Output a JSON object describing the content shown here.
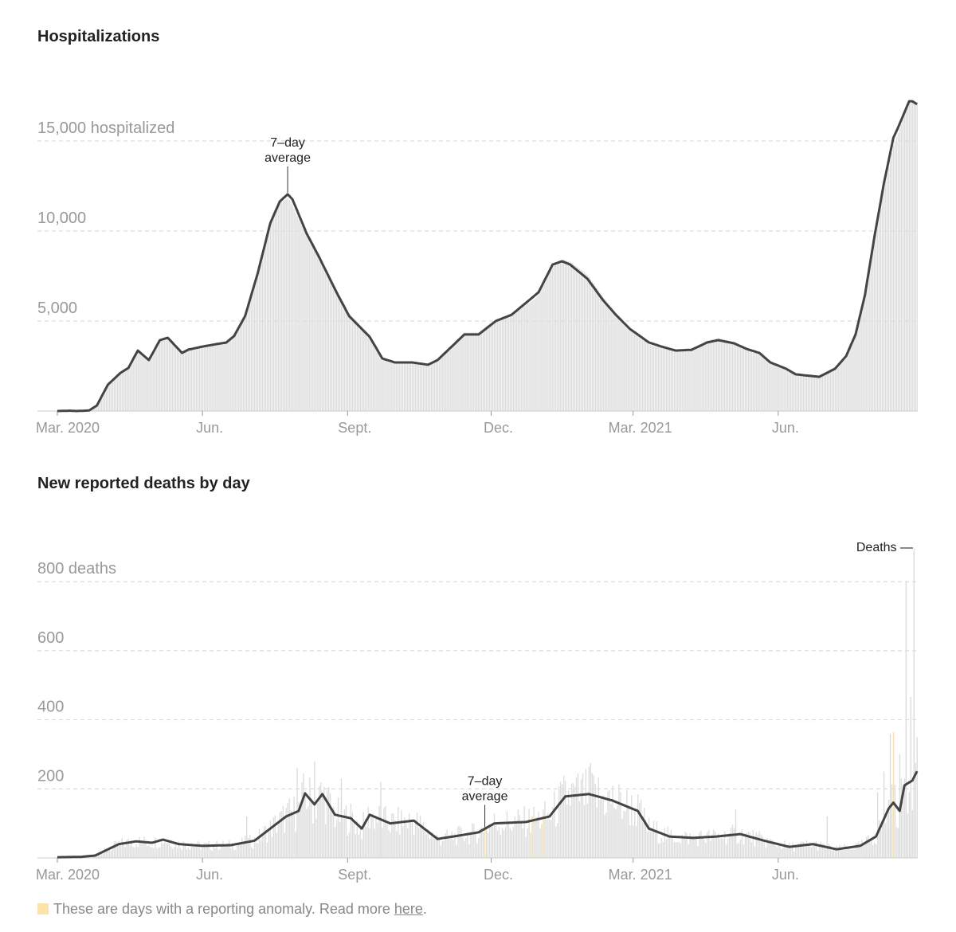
{
  "chart_data": [
    {
      "type": "area",
      "title": "Hospitalizations",
      "x_unit": "days since 2020-03-01",
      "x_ticks": [
        {
          "day": 0,
          "label": "Mar. 2020"
        },
        {
          "day": 92,
          "label": "Jun."
        },
        {
          "day": 184,
          "label": "Sept."
        },
        {
          "day": 275,
          "label": "Dec."
        },
        {
          "day": 365,
          "label": "Mar. 2021"
        },
        {
          "day": 457,
          "label": "Jun."
        }
      ],
      "y_ticks": [
        {
          "value": 5000,
          "label": "5,000"
        },
        {
          "value": 10000,
          "label": "10,000"
        },
        {
          "value": 15000,
          "label": "15,000 hospitalized"
        }
      ],
      "ylim": [
        0,
        17500
      ],
      "grid": true,
      "annotation": {
        "line1": "7–day",
        "line2": "average",
        "day": 146
      },
      "series": [
        {
          "name": "7-day average",
          "x": [
            0,
            8,
            12,
            20,
            25,
            32,
            40,
            45,
            51,
            58,
            65,
            70,
            79,
            83,
            92,
            101,
            107,
            112,
            119,
            127,
            135,
            141,
            146,
            149,
            158,
            166,
            177,
            185,
            198,
            206,
            214,
            225,
            235,
            241,
            258,
            267,
            278,
            288,
            299,
            305,
            314,
            320,
            325,
            336,
            346,
            354,
            363,
            375,
            383,
            392,
            402,
            412,
            419,
            429,
            437,
            445,
            452,
            462,
            468,
            483,
            493,
            500,
            506,
            512,
            518,
            524,
            530,
            533,
            540,
            542,
            545
          ],
          "y": [
            0,
            20,
            0,
            30,
            300,
            1460,
            2120,
            2390,
            3360,
            2830,
            3940,
            4070,
            3230,
            3410,
            3580,
            3720,
            3800,
            4160,
            5270,
            7650,
            10440,
            11640,
            12040,
            11770,
            9870,
            8540,
            6590,
            5270,
            4120,
            2920,
            2700,
            2700,
            2570,
            2830,
            4250,
            4250,
            5000,
            5350,
            6150,
            6590,
            8140,
            8320,
            8140,
            7350,
            6150,
            5350,
            4560,
            3810,
            3580,
            3360,
            3400,
            3810,
            3940,
            3760,
            3450,
            3230,
            2700,
            2350,
            2040,
            1900,
            2350,
            3050,
            4250,
            6460,
            9690,
            12650,
            15180,
            15750,
            17210,
            17210,
            17040
          ]
        }
      ]
    },
    {
      "type": "bar",
      "title": "New reported deaths by day",
      "x_unit": "days since 2020-03-01",
      "x_ticks": [
        {
          "day": 0,
          "label": "Mar. 2020"
        },
        {
          "day": 92,
          "label": "Jun."
        },
        {
          "day": 184,
          "label": "Sept."
        },
        {
          "day": 275,
          "label": "Dec."
        },
        {
          "day": 365,
          "label": "Mar. 2021"
        },
        {
          "day": 457,
          "label": "Jun."
        }
      ],
      "y_ticks": [
        {
          "value": 200,
          "label": "200"
        },
        {
          "value": 400,
          "label": "400"
        },
        {
          "value": 600,
          "label": "600"
        },
        {
          "value": 800,
          "label": "800 deaths"
        }
      ],
      "ylim": [
        0,
        900
      ],
      "grid": true,
      "annotation": {
        "line1": "7–day",
        "line2": "average",
        "day": 271
      },
      "bar_label": "Deaths —",
      "series": [
        {
          "name": "7-day average",
          "x": [
            0,
            15,
            24,
            39,
            50,
            60,
            67,
            77,
            92,
            110,
            125,
            135,
            145,
            153,
            157,
            163,
            168,
            176,
            186,
            193,
            198,
            211,
            226,
            241,
            251,
            267,
            277,
            297,
            312,
            322,
            337,
            352,
            368,
            375,
            388,
            403,
            418,
            433,
            448,
            464,
            479,
            494,
            509,
            519,
            527,
            530,
            534,
            537,
            542,
            545
          ],
          "y": [
            2,
            3,
            7,
            40,
            48,
            44,
            53,
            40,
            35,
            37,
            50,
            85,
            120,
            136,
            187,
            155,
            185,
            125,
            115,
            85,
            125,
            100,
            108,
            55,
            62,
            74,
            100,
            104,
            120,
            178,
            185,
            166,
            136,
            85,
            62,
            58,
            62,
            69,
            50,
            32,
            40,
            25,
            35,
            62,
            143,
            160,
            136,
            210,
            224,
            251
          ]
        }
      ],
      "spikes": [
        {
          "day": 120,
          "value": 120
        },
        {
          "day": 152,
          "value": 260
        },
        {
          "day": 163,
          "value": 280
        },
        {
          "day": 180,
          "value": 230
        },
        {
          "day": 205,
          "value": 220
        },
        {
          "day": 338,
          "value": 275
        },
        {
          "day": 430,
          "value": 140
        },
        {
          "day": 488,
          "value": 120
        },
        {
          "day": 520,
          "value": 190
        },
        {
          "day": 524,
          "value": 250
        },
        {
          "day": 528,
          "value": 360
        },
        {
          "day": 534,
          "value": 300
        },
        {
          "day": 538,
          "value": 800
        },
        {
          "day": 541,
          "value": 466
        },
        {
          "day": 543,
          "value": 890
        },
        {
          "day": 545,
          "value": 350
        }
      ],
      "anomalies": [
        {
          "day": 271,
          "value": 90
        },
        {
          "day": 301,
          "value": 120
        },
        {
          "day": 308,
          "value": 110
        },
        {
          "day": 530,
          "value": 365
        }
      ]
    }
  ],
  "footnote": {
    "text": "These are days with a reporting anomaly. Read more ",
    "link": "here",
    "end": "."
  },
  "colors": {
    "line": "#444444",
    "bar": "#dedede",
    "anomaly": "#fde3a7",
    "grid": "#d4d4d4",
    "axis_text": "#999999"
  }
}
